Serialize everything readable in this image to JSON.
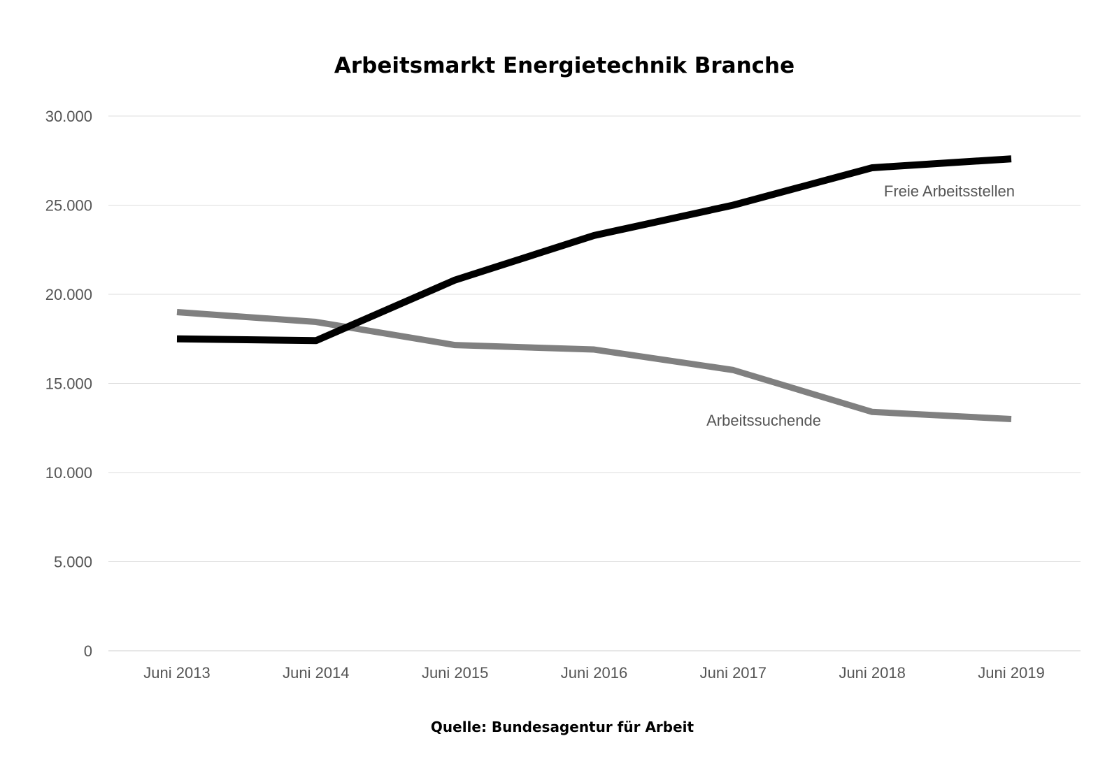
{
  "chart_data": {
    "type": "line",
    "title": "Arbeitsmarkt Energietechnik Branche",
    "source": "Quelle: Bundesagentur für Arbeit",
    "categories": [
      "Juni 2013",
      "Juni 2014",
      "Juni 2015",
      "Juni 2016",
      "Juni 2017",
      "Juni 2018",
      "Juni 2019"
    ],
    "y_ticks": [
      "0",
      "5.000",
      "10.000",
      "15.000",
      "20.000",
      "25.000",
      "30.000"
    ],
    "ylim": [
      0,
      30000
    ],
    "grid": true,
    "legend": "inline labels",
    "series": [
      {
        "name": "Freie Arbeitsstellen",
        "color": "#000000",
        "values": [
          17500,
          17400,
          20800,
          23300,
          25000,
          27100,
          27600
        ]
      },
      {
        "name": "Arbeitssuchende",
        "color": "#808080",
        "values": [
          19000,
          18450,
          17150,
          16900,
          15750,
          13400,
          13000
        ]
      }
    ]
  }
}
